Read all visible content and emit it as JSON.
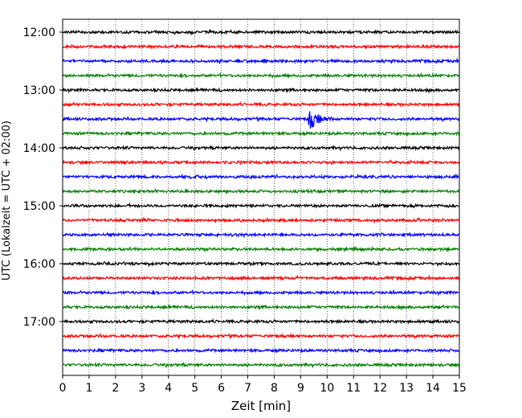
{
  "chart_data": {
    "type": "line",
    "title": "",
    "xlabel": "Zeit  [min]",
    "ylabel": "UTC (Lokalzeit = UTC + 02:00)",
    "xlim": [
      0,
      15
    ],
    "x_ticks": [
      "0",
      "1",
      "2",
      "3",
      "4",
      "5",
      "6",
      "7",
      "8",
      "9",
      "10",
      "11",
      "12",
      "13",
      "14",
      "15"
    ],
    "y_ticks": [
      {
        "label": "12:00",
        "trace_index": 0
      },
      {
        "label": "13:00",
        "trace_index": 4
      },
      {
        "label": "14:00",
        "trace_index": 8
      },
      {
        "label": "15:00",
        "trace_index": 12
      },
      {
        "label": "16:00",
        "trace_index": 16
      },
      {
        "label": "17:00",
        "trace_index": 20
      }
    ],
    "grid": "vertical dotted",
    "trace_interval_min": 15,
    "trace_colors": [
      "#000000",
      "#ff0000",
      "#0000ff",
      "#008000"
    ],
    "traces": [
      {
        "start": "12:00",
        "color": "#000000"
      },
      {
        "start": "12:15",
        "color": "#ff0000"
      },
      {
        "start": "12:30",
        "color": "#0000ff"
      },
      {
        "start": "12:45",
        "color": "#008000"
      },
      {
        "start": "13:00",
        "color": "#000000"
      },
      {
        "start": "13:15",
        "color": "#ff0000"
      },
      {
        "start": "13:30",
        "color": "#0000ff",
        "event": {
          "x_min": 9.3,
          "duration_min": 1.0,
          "amplitude": "large"
        }
      },
      {
        "start": "13:45",
        "color": "#008000"
      },
      {
        "start": "14:00",
        "color": "#000000"
      },
      {
        "start": "14:15",
        "color": "#ff0000"
      },
      {
        "start": "14:30",
        "color": "#0000ff"
      },
      {
        "start": "14:45",
        "color": "#008000"
      },
      {
        "start": "15:00",
        "color": "#000000"
      },
      {
        "start": "15:15",
        "color": "#ff0000"
      },
      {
        "start": "15:30",
        "color": "#0000ff"
      },
      {
        "start": "15:45",
        "color": "#008000"
      },
      {
        "start": "16:00",
        "color": "#000000"
      },
      {
        "start": "16:15",
        "color": "#ff0000"
      },
      {
        "start": "16:30",
        "color": "#0000ff"
      },
      {
        "start": "16:45",
        "color": "#008000"
      },
      {
        "start": "17:00",
        "color": "#000000"
      },
      {
        "start": "17:15",
        "color": "#ff0000"
      },
      {
        "start": "17:30",
        "color": "#0000ff"
      },
      {
        "start": "17:45",
        "color": "#008000"
      }
    ]
  }
}
